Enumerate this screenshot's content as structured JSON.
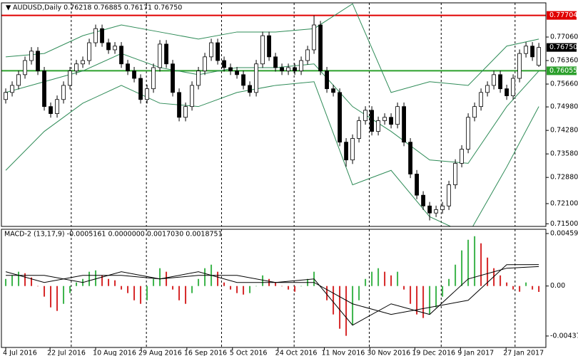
{
  "chart_data": [
    {
      "type": "candlestick",
      "title": "AUDUSD,Daily  0.76218 0.76885 0.76171 0.76750",
      "xlim": [
        -0.67,
        84.1
      ],
      "xticks": [
        {
          "value": 0,
          "label": "4 Jul 2016"
        },
        {
          "value": 6.9,
          "label": "22 Jul 2016"
        },
        {
          "value": 14,
          "label": "10 Aug 2016"
        },
        {
          "value": 21.1,
          "label": "29 Aug 2016"
        },
        {
          "value": 28.2,
          "label": "16 Sep 2016"
        },
        {
          "value": 35.3,
          "label": "5 Oct 2016"
        },
        {
          "value": 42.4,
          "label": "24 Oct 2016"
        },
        {
          "value": 49.6,
          "label": "11 Nov 2016"
        },
        {
          "value": 56.7,
          "label": "30 Nov 2016"
        },
        {
          "value": 63.7,
          "label": "19 Dec 2016"
        },
        {
          "value": 70.8,
          "label": "9 Jan 2017"
        },
        {
          "value": 77.9,
          "label": "27 Jan 2017"
        }
      ],
      "separators": [
        10.2,
        21.9,
        33.6,
        44.9,
        56.6,
        67.8,
        79.3
      ],
      "ylim": [
        0.71421,
        0.78078
      ],
      "yticks": [
        {
          "value": 0.7706,
          "label": "0.77060"
        },
        {
          "value": 0.7636,
          "label": "0.76360"
        },
        {
          "value": 0.7566,
          "label": "0.75660"
        },
        {
          "value": 0.7498,
          "label": "0.74980"
        },
        {
          "value": 0.7428,
          "label": "0.74280"
        },
        {
          "value": 0.7358,
          "label": "0.73580"
        },
        {
          "value": 0.7288,
          "label": "0.72880"
        },
        {
          "value": 0.721,
          "label": "0.72100"
        },
        {
          "value": 0.715,
          "label": "0.71500"
        }
      ],
      "open": [
        0.752,
        0.7541,
        0.7562,
        0.7594,
        0.7636,
        0.7664,
        0.7605,
        0.7499,
        0.7478,
        0.752,
        0.7562,
        0.7605,
        0.7626,
        0.7636,
        0.7689,
        0.7731,
        0.7689,
        0.7668,
        0.7679,
        0.7626,
        0.7605,
        0.7583,
        0.752,
        0.7552,
        0.7615,
        0.7685,
        0.7626,
        0.7541,
        0.7467,
        0.7499,
        0.7562,
        0.7605,
        0.7647,
        0.7689,
        0.7636,
        0.7615,
        0.7605,
        0.7594,
        0.7562,
        0.7541,
        0.7626,
        0.771,
        0.7647,
        0.7615,
        0.7605,
        0.7615,
        0.7605,
        0.7636,
        0.7668,
        0.7742,
        0.7605,
        0.7552,
        0.7541,
        0.7393,
        0.734,
        0.7404,
        0.7457,
        0.7488,
        0.7425,
        0.7457,
        0.7467,
        0.7446,
        0.7499,
        0.7393,
        0.7298,
        0.7235,
        0.7203,
        0.7182,
        0.7192,
        0.7203,
        0.7266,
        0.733,
        0.7372,
        0.7467,
        0.7499,
        0.7541,
        0.7562,
        0.7594,
        0.7552,
        0.7531,
        0.7583,
        0.7657,
        0.7679,
        0.76218
      ],
      "high": [
        0.7553,
        0.7574,
        0.7606,
        0.7648,
        0.7676,
        0.7676,
        0.7617,
        0.7511,
        0.7532,
        0.7574,
        0.7617,
        0.7638,
        0.7648,
        0.7701,
        0.7743,
        0.7743,
        0.7701,
        0.7691,
        0.7691,
        0.7638,
        0.7617,
        0.7595,
        0.7564,
        0.7627,
        0.7697,
        0.7697,
        0.7638,
        0.7553,
        0.7511,
        0.7574,
        0.7617,
        0.7659,
        0.7701,
        0.7701,
        0.7648,
        0.7627,
        0.7617,
        0.7606,
        0.7574,
        0.7638,
        0.7722,
        0.7722,
        0.7659,
        0.7627,
        0.7627,
        0.7627,
        0.7648,
        0.768,
        0.777,
        0.7754,
        0.7617,
        0.7564,
        0.7553,
        0.7405,
        0.7416,
        0.7469,
        0.75,
        0.75,
        0.7469,
        0.7479,
        0.7479,
        0.7511,
        0.7511,
        0.7405,
        0.731,
        0.7247,
        0.7215,
        0.7204,
        0.7215,
        0.7278,
        0.7342,
        0.7384,
        0.7479,
        0.7511,
        0.7553,
        0.7574,
        0.7606,
        0.7606,
        0.7564,
        0.7595,
        0.7669,
        0.7691,
        0.7691,
        0.76885
      ],
      "low": [
        0.7508,
        0.7529,
        0.755,
        0.7582,
        0.7624,
        0.7593,
        0.7487,
        0.7466,
        0.7466,
        0.7508,
        0.755,
        0.7593,
        0.7614,
        0.7624,
        0.7677,
        0.7677,
        0.7656,
        0.7656,
        0.7614,
        0.7593,
        0.7571,
        0.7508,
        0.7508,
        0.754,
        0.7603,
        0.7614,
        0.7529,
        0.7455,
        0.7455,
        0.7487,
        0.755,
        0.7593,
        0.7635,
        0.7624,
        0.7603,
        0.7593,
        0.7582,
        0.755,
        0.7529,
        0.7529,
        0.7614,
        0.7635,
        0.7603,
        0.7593,
        0.7593,
        0.7593,
        0.7593,
        0.7624,
        0.7656,
        0.7593,
        0.754,
        0.7529,
        0.7381,
        0.732,
        0.7328,
        0.7392,
        0.7445,
        0.7413,
        0.7413,
        0.7445,
        0.7434,
        0.7434,
        0.7381,
        0.7286,
        0.7223,
        0.7191,
        0.716,
        0.717,
        0.718,
        0.7191,
        0.7254,
        0.7318,
        0.736,
        0.7455,
        0.7487,
        0.7529,
        0.755,
        0.754,
        0.7519,
        0.7519,
        0.7571,
        0.7645,
        0.7635,
        0.76171
      ],
      "close": [
        0.7541,
        0.7562,
        0.7594,
        0.7636,
        0.7664,
        0.7605,
        0.7499,
        0.7478,
        0.752,
        0.7562,
        0.7605,
        0.7626,
        0.7636,
        0.7689,
        0.7731,
        0.7689,
        0.7668,
        0.7679,
        0.7626,
        0.7605,
        0.7583,
        0.752,
        0.7552,
        0.7615,
        0.7685,
        0.7626,
        0.7541,
        0.7467,
        0.7499,
        0.7562,
        0.7605,
        0.7647,
        0.7689,
        0.7636,
        0.7615,
        0.7605,
        0.7594,
        0.7562,
        0.7541,
        0.7626,
        0.771,
        0.7647,
        0.7615,
        0.7605,
        0.7615,
        0.7605,
        0.7636,
        0.7668,
        0.7742,
        0.7605,
        0.7552,
        0.7541,
        0.7393,
        0.734,
        0.7404,
        0.7457,
        0.7488,
        0.7425,
        0.7457,
        0.7467,
        0.7446,
        0.7499,
        0.7393,
        0.7298,
        0.7235,
        0.7203,
        0.7182,
        0.7192,
        0.7203,
        0.7266,
        0.733,
        0.7372,
        0.7467,
        0.7499,
        0.7541,
        0.7562,
        0.7594,
        0.7552,
        0.7531,
        0.7583,
        0.7657,
        0.7679,
        0.7647,
        0.7675
      ],
      "up_color": "#ffffff",
      "down_color": "#000000",
      "bands": {
        "x": [
          0,
          6,
          12,
          18,
          24,
          30,
          36,
          42,
          48,
          54,
          60,
          66,
          72,
          78,
          83
        ],
        "upper": [
          0.7647,
          0.7657,
          0.771,
          0.7742,
          0.7721,
          0.77,
          0.7721,
          0.7721,
          0.7731,
          0.7805,
          0.7541,
          0.7573,
          0.7562,
          0.7679,
          0.77
        ],
        "middle": [
          0.7541,
          0.7573,
          0.7605,
          0.7657,
          0.7615,
          0.7594,
          0.7615,
          0.7615,
          0.7626,
          0.7499,
          0.7425,
          0.734,
          0.733,
          0.7499,
          0.7605
        ],
        "lower": [
          0.7309,
          0.7425,
          0.7509,
          0.7562,
          0.7509,
          0.7499,
          0.7541,
          0.7562,
          0.7573,
          0.7266,
          0.7309,
          0.7171,
          0.7118,
          0.7319,
          0.7499
        ],
        "color": "#2e8b57"
      },
      "hlines": [
        {
          "value": 0.77704,
          "color": "#e00000"
        },
        {
          "value": 0.76055,
          "color": "#2ca02c"
        }
      ],
      "last_price": {
        "value": 0.7675,
        "label": "0.76750"
      }
    },
    {
      "type": "macd",
      "title": "MACD-2 (13,17,9) -0.0005161 0.0000000 0.0017030 0.0018751",
      "ylim": [
        -0.00538,
        0.00497
      ],
      "yticks": [
        0.004595,
        {
          "value": 0,
          "label": "0.00"
        },
        -0.004378
      ],
      "histogram": [
        0.00062,
        0.00093,
        0.00125,
        0.00112,
        0.00075,
        0,
        -0.00093,
        -0.00187,
        -0.00218,
        -0.00156,
        -0.00062,
        0.00031,
        0.00062,
        0.00125,
        0.00137,
        0.00093,
        0.00062,
        0.0005,
        -0.00031,
        -0.00062,
        -0.00125,
        -0.00156,
        -0.00125,
        0.00062,
        0.00156,
        0.00125,
        -0.00031,
        -0.00125,
        -0.00156,
        -0.00062,
        0.00062,
        0.00156,
        0.00187,
        0.00125,
        0.00031,
        -0.00031,
        -0.00062,
        -0.00075,
        -0.00062,
        0,
        0.00093,
        0.00062,
        0.00031,
        0,
        -0.00031,
        -0.0005,
        0,
        0.00062,
        0.00125,
        0,
        -0.00125,
        -0.00249,
        -0.00374,
        -0.00436,
        -0.00343,
        -0.00125,
        0.00062,
        0.00125,
        0.00156,
        0.00125,
        0.00093,
        0.00125,
        -0.00031,
        -0.00156,
        -0.00249,
        -0.0028,
        -0.00249,
        -0.00187,
        -0.00093,
        0.00062,
        0.00187,
        0.00312,
        0.00405,
        0.00436,
        0.00374,
        0.00249,
        0.00156,
        0.00093,
        0.00031,
        -0.00031,
        -0.0005,
        0.00031,
        -0.00031,
        -0.0005161
      ],
      "up_color": "#3cb44b",
      "down_color": "#d62728",
      "lines": {
        "x": [
          0,
          6,
          12,
          18,
          24,
          30,
          36,
          42,
          48,
          54,
          60,
          66,
          72,
          78,
          83
        ],
        "main": [
          0.00125,
          0.00031,
          0.00093,
          0.00093,
          0.00062,
          0.00125,
          0.00031,
          0.00031,
          0.00062,
          -0.00343,
          -0.00156,
          -0.00249,
          0.00062,
          0.00156,
          0.001703
        ],
        "signal": [
          0.00093,
          0.00093,
          0.00031,
          0.00125,
          0.00062,
          0.00093,
          0.00093,
          0.00031,
          0.00031,
          -0.00156,
          -0.00249,
          -0.00187,
          -0.00125,
          0.00187,
          0.0018751
        ],
        "color": "#000000"
      }
    }
  ]
}
